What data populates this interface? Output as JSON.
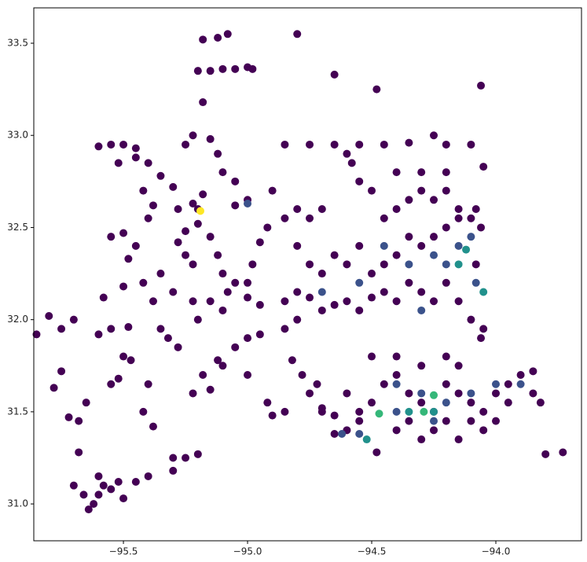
{
  "chart_data": {
    "type": "scatter",
    "xlim": [
      -95.861,
      -93.655
    ],
    "ylim": [
      30.8,
      33.692
    ],
    "xticks": [
      {
        "value": -95.5,
        "label": "−95.5"
      },
      {
        "value": -95.0,
        "label": "−95.0"
      },
      {
        "value": -94.5,
        "label": "−94.5"
      },
      {
        "value": -94.0,
        "label": "−94.0"
      }
    ],
    "yticks": [
      {
        "value": 31.0,
        "label": "31.0"
      },
      31.5,
      {
        "value": 32.0,
        "label": "32.0"
      },
      32.5,
      {
        "value": 33.0,
        "label": "33.0"
      },
      33.5
    ],
    "series": [
      {
        "color": "#440154",
        "x": [
          -95.6,
          -95.62,
          -95.58,
          -95.55,
          -95.64,
          -95.66,
          -95.7,
          -95.6,
          -95.52,
          -95.5,
          -95.45,
          -95.4,
          -95.68,
          -95.72,
          -95.68,
          -95.65,
          -95.55,
          -95.52,
          -95.5,
          -95.47,
          -95.6,
          -95.55,
          -95.48,
          -95.78,
          -95.75,
          -95.85,
          -95.8,
          -95.7,
          -95.75,
          -95.58,
          -95.5,
          -95.42,
          -95.38,
          -95.35,
          -95.32,
          -95.28,
          -95.4,
          -95.42,
          -95.38,
          -95.3,
          -95.3,
          -95.2,
          -95.25,
          -95.55,
          -95.5,
          -95.45,
          -95.48,
          -95.4,
          -95.38,
          -95.42,
          -95.35,
          -95.4,
          -95.45,
          -95.52,
          -95.55,
          -95.5,
          -95.45,
          -95.6,
          -95.3,
          -95.28,
          -95.22,
          -95.2,
          -95.18,
          -95.28,
          -95.25,
          -95.2,
          -95.25,
          -95.22,
          -95.35,
          -95.3,
          -95.22,
          -95.15,
          -95.2,
          -95.1,
          -95.25,
          -95.22,
          -95.15,
          -95.12,
          -95.1,
          -95.05,
          -95.18,
          -95.12,
          -95.08,
          -94.8,
          -95.2,
          -95.15,
          -95.1,
          -95.05,
          -95.0,
          -94.98,
          -95.18,
          -94.65,
          -94.48,
          -94.06,
          -95.15,
          -95.12,
          -95.1,
          -95.05,
          -95.0,
          -94.95,
          -95.08,
          -95.0,
          -94.98,
          -94.95,
          -94.92,
          -95.05,
          -95.0,
          -94.9,
          -95.0,
          -94.95,
          -95.05,
          -95.12,
          -95.18,
          -95.15,
          -95.22,
          -95.1,
          -95.0,
          -94.92,
          -94.9,
          -94.85,
          -94.82,
          -94.78,
          -94.75,
          -94.72,
          -94.7,
          -94.65,
          -94.85,
          -94.8,
          -94.85,
          -94.8,
          -94.75,
          -94.7,
          -94.65,
          -94.6,
          -94.55,
          -94.5,
          -94.45,
          -94.4,
          -94.35,
          -94.3,
          -94.25,
          -94.2,
          -94.15,
          -94.1,
          -94.06,
          -94.05,
          -94.08,
          -94.06,
          -94.08,
          -94.15,
          -94.2,
          -94.25,
          -94.3,
          -94.35,
          -94.4,
          -94.45,
          -94.5,
          -94.55,
          -94.6,
          -94.65,
          -94.7,
          -94.75,
          -94.8,
          -94.85,
          -94.8,
          -94.75,
          -94.7,
          -94.45,
          -94.4,
          -94.35,
          -94.3,
          -94.25,
          -94.2,
          -94.15,
          -94.1,
          -94.5,
          -94.55,
          -94.58,
          -94.6,
          -94.55,
          -94.65,
          -94.75,
          -94.85,
          -94.45,
          -94.35,
          -94.25,
          -94.2,
          -94.1,
          -94.05,
          -94.4,
          -94.3,
          -94.2,
          -94.6,
          -94.55,
          -94.5,
          -94.45,
          -94.4,
          -94.35,
          -94.3,
          -94.25,
          -94.2,
          -94.15,
          -94.1,
          -94.05,
          -94.0,
          -93.95,
          -93.9,
          -93.85,
          -93.82,
          -93.85,
          -93.95,
          -94.3,
          -94.2,
          -94.15,
          -94.4,
          -94.5,
          -94.55,
          -94.6,
          -94.4,
          -94.35,
          -94.3,
          -94.25,
          -94.2,
          -94.15,
          -94.1,
          -94.05,
          -94.0,
          -93.8,
          -93.73,
          -94.48,
          -94.65,
          -94.7
        ],
        "values": [
          31.05,
          31.0,
          31.1,
          31.08,
          30.97,
          31.05,
          31.1,
          31.15,
          31.12,
          31.03,
          31.12,
          31.15,
          31.28,
          31.47,
          31.45,
          31.55,
          31.65,
          31.68,
          31.8,
          31.78,
          31.92,
          31.95,
          31.96,
          31.63,
          31.72,
          31.92,
          32.02,
          32.0,
          31.95,
          32.12,
          32.18,
          32.2,
          32.1,
          31.95,
          31.9,
          31.85,
          31.65,
          31.5,
          31.42,
          31.25,
          31.18,
          31.27,
          31.25,
          32.45,
          32.47,
          32.4,
          32.33,
          32.55,
          32.62,
          32.7,
          32.78,
          32.85,
          32.88,
          32.85,
          32.95,
          32.95,
          32.93,
          32.94,
          32.72,
          32.6,
          32.63,
          32.6,
          32.68,
          32.42,
          32.48,
          32.52,
          32.35,
          32.3,
          32.25,
          32.15,
          32.1,
          32.1,
          32.0,
          32.05,
          32.95,
          33.0,
          32.98,
          32.9,
          32.8,
          32.75,
          33.52,
          33.53,
          33.55,
          33.55,
          33.35,
          33.35,
          33.36,
          33.36,
          33.37,
          33.36,
          33.18,
          33.33,
          33.25,
          33.27,
          32.45,
          32.35,
          32.25,
          32.2,
          32.12,
          32.08,
          32.15,
          32.2,
          32.3,
          32.42,
          32.5,
          32.62,
          32.65,
          32.7,
          31.9,
          31.92,
          31.85,
          31.78,
          31.7,
          31.62,
          31.6,
          31.75,
          31.7,
          31.55,
          31.48,
          31.5,
          31.78,
          31.7,
          31.6,
          31.65,
          31.5,
          31.48,
          31.95,
          32.0,
          32.1,
          32.15,
          32.12,
          32.05,
          32.08,
          32.1,
          32.05,
          32.12,
          32.15,
          32.1,
          32.2,
          32.15,
          32.1,
          32.2,
          32.1,
          32.0,
          31.9,
          31.95,
          32.3,
          32.5,
          32.6,
          32.55,
          32.5,
          32.45,
          32.4,
          32.45,
          32.35,
          32.3,
          32.25,
          32.4,
          32.3,
          32.35,
          32.25,
          32.3,
          32.4,
          32.55,
          32.6,
          32.55,
          32.6,
          32.55,
          32.6,
          32.65,
          32.7,
          32.65,
          32.7,
          32.6,
          32.55,
          32.7,
          32.75,
          32.85,
          32.9,
          32.95,
          32.95,
          32.95,
          32.95,
          32.95,
          32.96,
          33.0,
          32.95,
          32.95,
          32.83,
          32.8,
          32.8,
          32.8,
          31.6,
          31.5,
          31.55,
          31.65,
          31.7,
          31.6,
          31.55,
          31.5,
          31.65,
          31.6,
          31.55,
          31.5,
          31.6,
          31.65,
          31.7,
          31.6,
          31.55,
          31.72,
          31.55,
          31.75,
          31.8,
          31.75,
          31.8,
          31.8,
          31.45,
          31.4,
          31.4,
          31.45,
          31.35,
          31.4,
          31.45,
          31.35,
          31.45,
          31.4,
          31.45,
          31.27,
          31.28,
          31.28,
          31.38,
          31.52
        ]
      },
      {
        "color": "#3b528b",
        "x": [
          -94.55,
          -94.45,
          -94.35,
          -94.25,
          -94.2,
          -94.15,
          -94.1,
          -94.08,
          -94.3,
          -94.4,
          -94.3,
          -94.2,
          -94.1,
          -94.0,
          -93.9,
          -94.25,
          -94.4,
          -95.0,
          -94.7,
          -94.62,
          -94.55
        ],
        "values": [
          32.2,
          32.4,
          32.3,
          32.35,
          32.3,
          32.4,
          32.45,
          32.2,
          32.05,
          31.65,
          31.6,
          31.55,
          31.6,
          31.65,
          31.65,
          31.45,
          31.5,
          32.63,
          32.15,
          31.38,
          31.38
        ]
      },
      {
        "color": "#21918c",
        "x": [
          -94.12,
          -94.05,
          -94.35,
          -94.52,
          -94.25,
          -94.15
        ],
        "values": [
          32.38,
          32.15,
          31.5,
          31.35,
          31.5,
          32.3
        ]
      },
      {
        "color": "#35b779",
        "x": [
          -94.25,
          -94.47,
          -94.29
        ],
        "values": [
          31.59,
          31.49,
          31.5
        ]
      },
      {
        "color": "#fde725",
        "x": [
          -95.19
        ],
        "values": [
          32.59
        ]
      }
    ]
  }
}
